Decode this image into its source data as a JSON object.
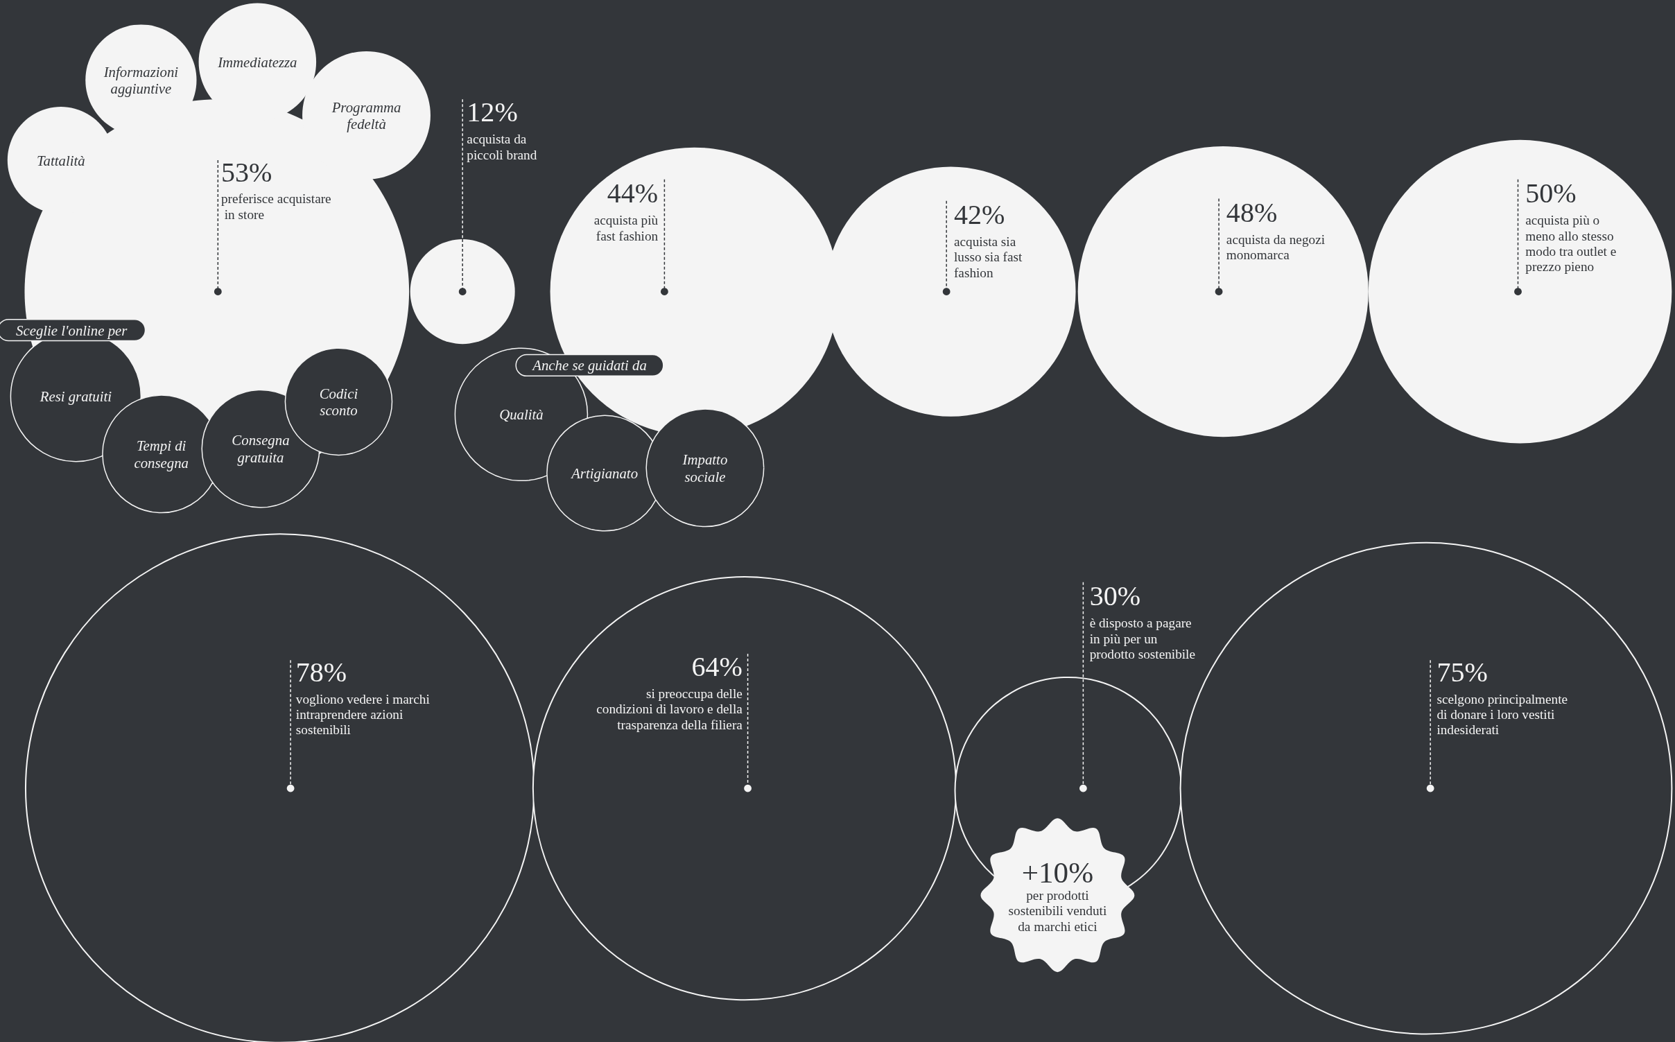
{
  "chart_data": {
    "type": "other",
    "categories": [
      "preferisce acquistare\n in store",
      "acquista da\npiccoli brand",
      "acquista più\nfast fashion",
      "acquista sia\nlusso sia fast\nfashion",
      "acquista da negozi\nmonomarca",
      "acquista più o\nmeno allo stesso\nmodo tra outlet e\nprezzo pieno",
      "vogliono vedere i marchi\nintraprendere azioni\nsostenibili",
      "si preoccupa delle\ncondizioni di lavoro e della\ntrasparenza della filiera",
      "è disposto a pagare\nin più per un\nprodotto sostenibile",
      "scelgono principalmente\ndi donare i loro vestiti\nindesiderati",
      "per prodotti\nsostenibili venduti\nda marchi etici"
    ],
    "values": [
      53,
      12,
      44,
      42,
      48,
      50,
      78,
      64,
      30,
      75,
      10
    ],
    "value_labels": [
      "53%",
      "12%",
      "44%",
      "42%",
      "48%",
      "50%",
      "78%",
      "64%",
      "30%",
      "75%",
      "+10%"
    ],
    "annotations": [
      "Informazioni\naggiuntive",
      "Immediatezza",
      "Programma\nfedeltà",
      "Tattalità",
      "Sceglie l'online per",
      "Resi gratuiti",
      "Tempi di\nconsegna",
      "Consegna\ngratuita",
      "Codici\nsconto",
      "Anche se guidati da",
      "Qualità",
      "Artigianato",
      "Impatto\nsociale"
    ]
  }
}
